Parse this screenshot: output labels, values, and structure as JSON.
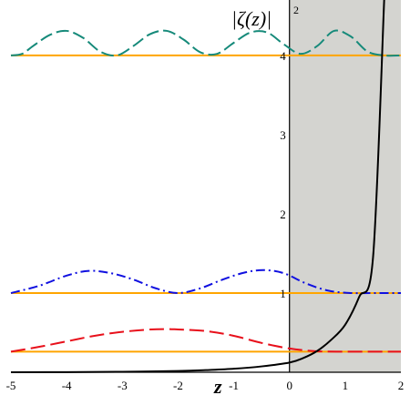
{
  "chart_data": {
    "type": "line",
    "title": "",
    "xlabel": "z",
    "ylabel": "|ζ(z)|",
    "ylabel_sup": "2",
    "xlim": [
      -5,
      2
    ],
    "ylim": [
      0,
      4.7
    ],
    "x_ticks": [
      "-5",
      "-4",
      "-3",
      "-2",
      "-1",
      "0",
      "1",
      "2"
    ],
    "y_ticks": [
      "1",
      "2",
      "3",
      "4"
    ],
    "grid": false,
    "legend": "none",
    "shaded_region": {
      "x_from": 0,
      "x_to": 2,
      "color": "#d4d4d0"
    },
    "potential": {
      "name": "",
      "color": "#000000",
      "x": [
        -5,
        -4,
        -3,
        -2,
        -1.5,
        -1,
        -0.5,
        0,
        0.25,
        0.5,
        0.75,
        1,
        1.25,
        1.5,
        1.7
      ],
      "y": [
        0.0,
        0.002,
        0.006,
        0.016,
        0.027,
        0.044,
        0.074,
        0.122,
        0.18,
        0.27,
        0.41,
        0.6,
        0.95,
        1.45,
        4.7
      ]
    },
    "energy_levels": [
      {
        "y": 0.26,
        "color": "#ffa500"
      },
      {
        "y": 1.0,
        "color": "#ffa500"
      },
      {
        "y": 4.0,
        "color": "#ffa500"
      }
    ],
    "series": [
      {
        "color": "#e8101b",
        "dash": "16,6",
        "x": [
          -5,
          -4.5,
          -4,
          -3.5,
          -3,
          -2.5,
          -2.2,
          -2,
          -1.5,
          -1,
          -0.5,
          0,
          0.5,
          1,
          1.5,
          2
        ],
        "y": [
          0.26,
          0.32,
          0.39,
          0.46,
          0.51,
          0.54,
          0.545,
          0.54,
          0.52,
          0.46,
          0.37,
          0.3,
          0.265,
          0.26,
          0.26,
          0.26
        ]
      },
      {
        "color": "#1010e0",
        "dash": "10,4,2,4",
        "x": [
          -5,
          -4.5,
          -4,
          -3.6,
          -3.2,
          -2.8,
          -2.4,
          -2,
          -1.6,
          -1.2,
          -0.8,
          -0.45,
          -0.1,
          0.3,
          0.7,
          1.1,
          1.5,
          2
        ],
        "y": [
          1.0,
          1.09,
          1.22,
          1.28,
          1.25,
          1.17,
          1.06,
          1.0,
          1.06,
          1.17,
          1.26,
          1.29,
          1.25,
          1.12,
          1.03,
          1.0,
          1.0,
          1.0
        ]
      },
      {
        "color": "#168a7a",
        "dash": "14,5",
        "x": [
          -5,
          -4.8,
          -4.6,
          -4.3,
          -4.0,
          -3.7,
          -3.4,
          -3.1,
          -2.8,
          -2.5,
          -2.2,
          -1.9,
          -1.6,
          -1.3,
          -1.0,
          -0.7,
          -0.4,
          -0.1,
          0.2,
          0.5,
          0.8,
          1.1,
          1.4,
          1.7,
          2
        ],
        "y": [
          4.0,
          4.02,
          4.12,
          4.26,
          4.31,
          4.22,
          4.05,
          4.0,
          4.12,
          4.27,
          4.31,
          4.2,
          4.04,
          4.02,
          4.16,
          4.29,
          4.29,
          4.14,
          4.02,
          4.12,
          4.31,
          4.24,
          4.05,
          4.0,
          4.0
        ]
      }
    ]
  }
}
